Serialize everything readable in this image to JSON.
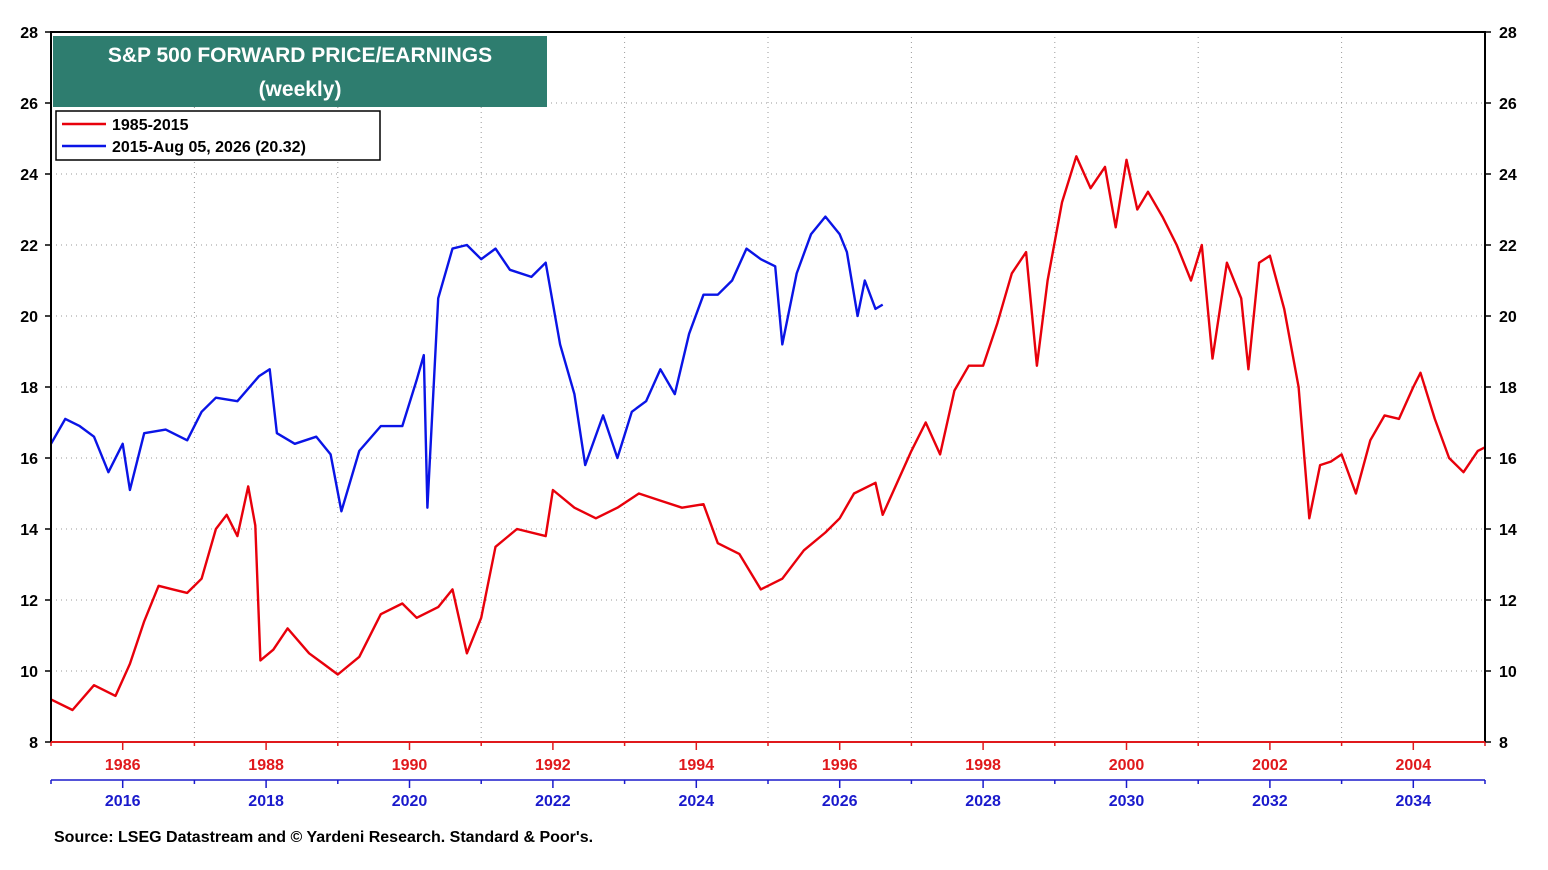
{
  "chart_data": {
    "type": "line",
    "title": "S&P 500 FORWARD PRICE/EARNINGS",
    "subtitle": "(weekly)",
    "ylim": [
      8,
      28
    ],
    "yticks": [
      "8",
      "10",
      "12",
      "14",
      "16",
      "18",
      "20",
      "22",
      "24",
      "26",
      "28"
    ],
    "grid": true,
    "legend_position": "top-left",
    "x_axis_bottom": {
      "ticks": [
        "2016",
        "2018",
        "2020",
        "2022",
        "2024",
        "2026",
        "2028",
        "2030",
        "2032",
        "2034"
      ],
      "color": "#1a1acc"
    },
    "x_axis_top": {
      "ticks": [
        "1986",
        "1988",
        "1990",
        "1992",
        "1994",
        "1996",
        "1998",
        "2000",
        "2002",
        "2004"
      ],
      "color": "#e0191c"
    },
    "series": [
      {
        "name": "1985-2015",
        "color": "#e8000b",
        "x_start_year": 1985,
        "x_end_year": 2015,
        "points": [
          [
            1985.0,
            9.2
          ],
          [
            1985.3,
            8.9
          ],
          [
            1985.6,
            9.6
          ],
          [
            1985.9,
            9.3
          ],
          [
            1986.1,
            10.2
          ],
          [
            1986.3,
            11.4
          ],
          [
            1986.5,
            12.4
          ],
          [
            1986.7,
            12.3
          ],
          [
            1986.9,
            12.2
          ],
          [
            1987.1,
            12.6
          ],
          [
            1987.3,
            14.0
          ],
          [
            1987.45,
            14.4
          ],
          [
            1987.6,
            13.8
          ],
          [
            1987.75,
            15.2
          ],
          [
            1987.85,
            14.1
          ],
          [
            1987.92,
            10.3
          ],
          [
            1988.1,
            10.6
          ],
          [
            1988.3,
            11.2
          ],
          [
            1988.6,
            10.5
          ],
          [
            1988.8,
            10.2
          ],
          [
            1989.0,
            9.9
          ],
          [
            1989.3,
            10.4
          ],
          [
            1989.6,
            11.6
          ],
          [
            1989.9,
            11.9
          ],
          [
            1990.1,
            11.5
          ],
          [
            1990.4,
            11.8
          ],
          [
            1990.6,
            12.3
          ],
          [
            1990.8,
            10.5
          ],
          [
            1991.0,
            11.5
          ],
          [
            1991.2,
            13.5
          ],
          [
            1991.5,
            14.0
          ],
          [
            1991.9,
            13.8
          ],
          [
            1992.0,
            15.1
          ],
          [
            1992.3,
            14.6
          ],
          [
            1992.6,
            14.3
          ],
          [
            1992.9,
            14.6
          ],
          [
            1993.2,
            15.0
          ],
          [
            1993.5,
            14.8
          ],
          [
            1993.8,
            14.6
          ],
          [
            1994.1,
            14.7
          ],
          [
            1994.3,
            13.6
          ],
          [
            1994.6,
            13.3
          ],
          [
            1994.9,
            12.3
          ],
          [
            1995.2,
            12.6
          ],
          [
            1995.5,
            13.4
          ],
          [
            1995.8,
            13.9
          ],
          [
            1996.0,
            14.3
          ],
          [
            1996.2,
            15.0
          ],
          [
            1996.5,
            15.3
          ],
          [
            1996.6,
            14.4
          ],
          [
            1996.8,
            15.3
          ],
          [
            1997.0,
            16.2
          ],
          [
            1997.2,
            17.0
          ],
          [
            1997.4,
            16.1
          ],
          [
            1997.6,
            17.9
          ],
          [
            1997.8,
            18.6
          ],
          [
            1998.0,
            18.6
          ],
          [
            1998.2,
            19.8
          ],
          [
            1998.4,
            21.2
          ],
          [
            1998.6,
            21.8
          ],
          [
            1998.75,
            18.6
          ],
          [
            1998.9,
            21.0
          ],
          [
            1999.1,
            23.2
          ],
          [
            1999.3,
            24.5
          ],
          [
            1999.5,
            23.6
          ],
          [
            1999.7,
            24.2
          ],
          [
            1999.85,
            22.5
          ],
          [
            2000.0,
            24.4
          ],
          [
            2000.15,
            23.0
          ],
          [
            2000.3,
            23.5
          ],
          [
            2000.5,
            22.8
          ],
          [
            2000.7,
            22.0
          ],
          [
            2000.9,
            21.0
          ],
          [
            2001.05,
            22.0
          ],
          [
            2001.2,
            18.8
          ],
          [
            2001.4,
            21.5
          ],
          [
            2001.6,
            20.5
          ],
          [
            2001.7,
            18.5
          ],
          [
            2001.85,
            21.5
          ],
          [
            2002.0,
            21.7
          ],
          [
            2002.2,
            20.2
          ],
          [
            2002.4,
            18.0
          ],
          [
            2002.55,
            14.3
          ],
          [
            2002.7,
            15.8
          ],
          [
            2002.85,
            15.9
          ],
          [
            2003.0,
            16.1
          ],
          [
            2003.2,
            15.0
          ],
          [
            2003.4,
            16.5
          ],
          [
            2003.6,
            17.2
          ],
          [
            2003.8,
            17.1
          ],
          [
            2004.0,
            18.0
          ],
          [
            2004.1,
            18.4
          ],
          [
            2004.3,
            17.1
          ],
          [
            2004.5,
            16.0
          ],
          [
            2004.7,
            15.6
          ],
          [
            2004.9,
            16.2
          ],
          [
            2005.0,
            16.3
          ]
        ]
      },
      {
        "name": "2015-Aug 05, 2026 (20.32)",
        "color": "#0a14e6",
        "x_start_year": 2015,
        "x_end_year": 2026.6,
        "points": [
          [
            2015.0,
            16.4
          ],
          [
            2015.2,
            17.1
          ],
          [
            2015.4,
            16.9
          ],
          [
            2015.6,
            16.6
          ],
          [
            2015.8,
            15.6
          ],
          [
            2016.0,
            16.4
          ],
          [
            2016.1,
            15.1
          ],
          [
            2016.3,
            16.7
          ],
          [
            2016.6,
            16.8
          ],
          [
            2016.9,
            16.5
          ],
          [
            2017.1,
            17.3
          ],
          [
            2017.3,
            17.7
          ],
          [
            2017.6,
            17.6
          ],
          [
            2017.9,
            18.3
          ],
          [
            2018.05,
            18.5
          ],
          [
            2018.15,
            16.7
          ],
          [
            2018.4,
            16.4
          ],
          [
            2018.7,
            16.6
          ],
          [
            2018.9,
            16.1
          ],
          [
            2019.05,
            14.5
          ],
          [
            2019.3,
            16.2
          ],
          [
            2019.6,
            16.9
          ],
          [
            2019.9,
            16.9
          ],
          [
            2020.1,
            18.2
          ],
          [
            2020.2,
            18.9
          ],
          [
            2020.25,
            14.6
          ],
          [
            2020.4,
            20.5
          ],
          [
            2020.6,
            21.9
          ],
          [
            2020.8,
            22.0
          ],
          [
            2021.0,
            21.6
          ],
          [
            2021.2,
            21.9
          ],
          [
            2021.4,
            21.3
          ],
          [
            2021.7,
            21.1
          ],
          [
            2021.9,
            21.5
          ],
          [
            2022.1,
            19.2
          ],
          [
            2022.3,
            17.8
          ],
          [
            2022.45,
            15.8
          ],
          [
            2022.7,
            17.2
          ],
          [
            2022.9,
            16.0
          ],
          [
            2023.1,
            17.3
          ],
          [
            2023.3,
            17.6
          ],
          [
            2023.5,
            18.5
          ],
          [
            2023.7,
            17.8
          ],
          [
            2023.9,
            19.5
          ],
          [
            2024.1,
            20.6
          ],
          [
            2024.3,
            20.6
          ],
          [
            2024.5,
            21.0
          ],
          [
            2024.7,
            21.9
          ],
          [
            2024.9,
            21.6
          ],
          [
            2025.1,
            21.4
          ],
          [
            2025.2,
            19.2
          ],
          [
            2025.4,
            21.2
          ],
          [
            2025.6,
            22.3
          ],
          [
            2025.8,
            22.8
          ],
          [
            2026.0,
            22.3
          ],
          [
            2026.1,
            21.8
          ],
          [
            2026.25,
            20.0
          ],
          [
            2026.35,
            21.0
          ],
          [
            2026.5,
            20.2
          ],
          [
            2026.6,
            20.32
          ]
        ]
      }
    ]
  },
  "legend": {
    "entry1": "1985-2015",
    "entry2": "2015-Aug 05, 2026 (20.32)"
  },
  "source": "Source: LSEG Datastream and © Yardeni Research. Standard & Poor's."
}
